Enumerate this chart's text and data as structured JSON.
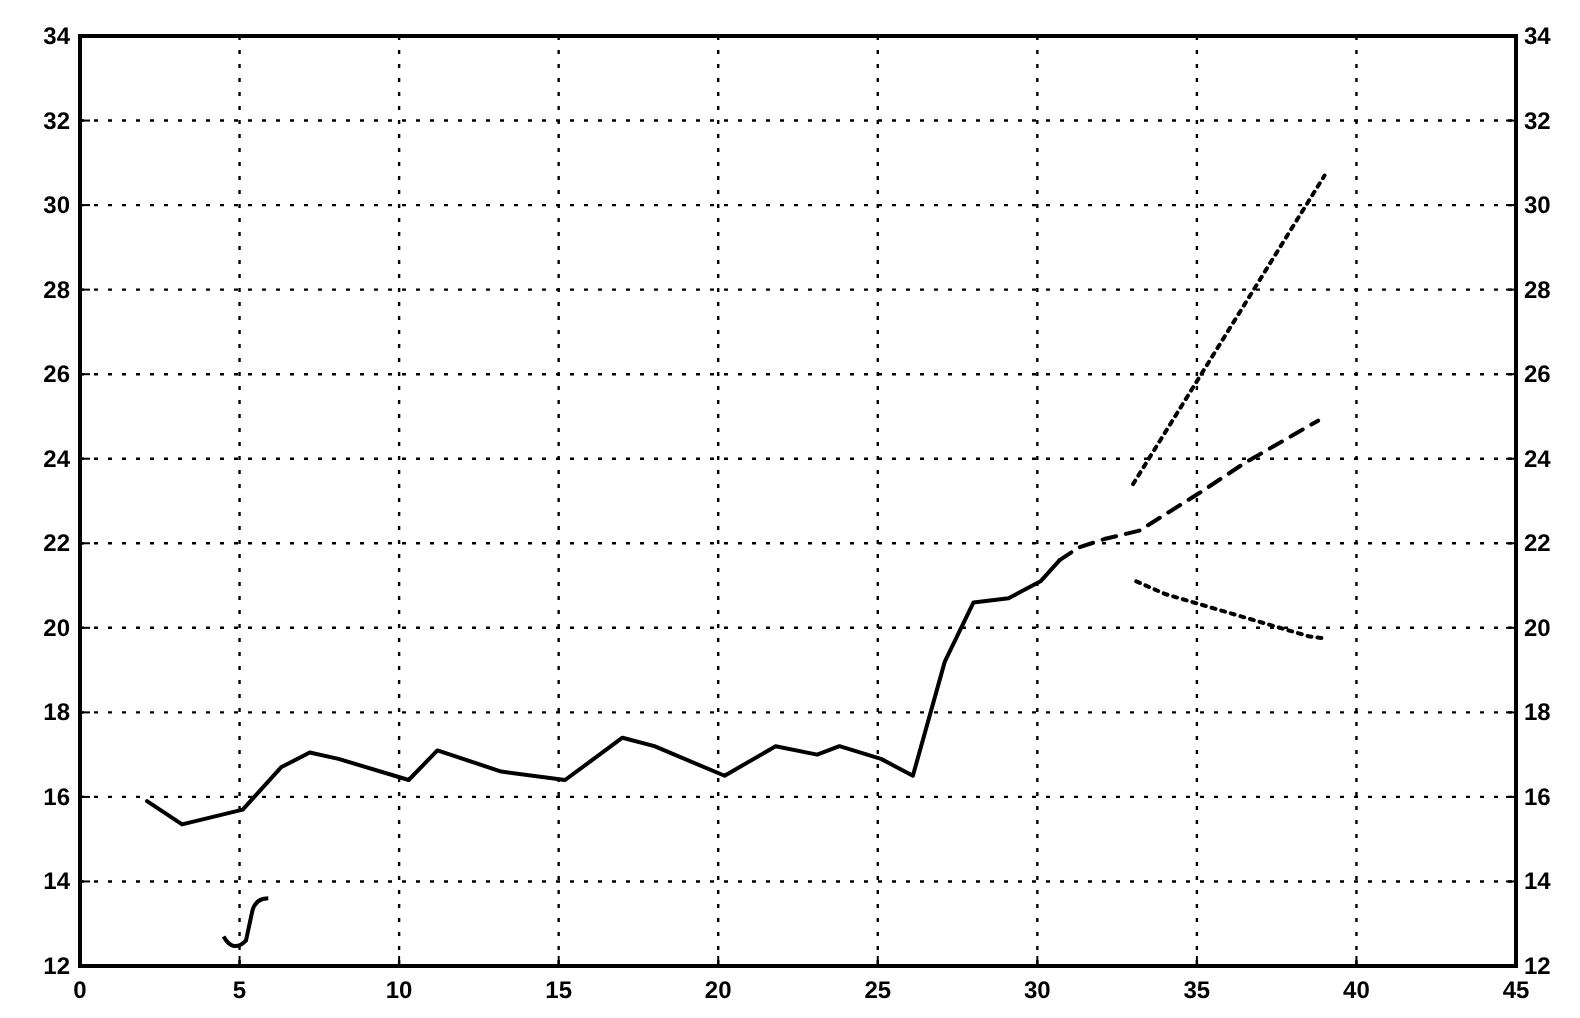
{
  "chart_data": {
    "type": "line",
    "xlim": [
      0,
      45
    ],
    "xticks": [
      0,
      5,
      10,
      15,
      20,
      25,
      30,
      35,
      40,
      45
    ],
    "ylim": [
      12,
      34
    ],
    "yticks": [
      12,
      14,
      16,
      18,
      20,
      22,
      24,
      26,
      28,
      30,
      32,
      34
    ],
    "y2lim": [
      12,
      34
    ],
    "y2ticks": [
      12,
      14,
      16,
      18,
      20,
      22,
      24,
      26,
      28,
      30,
      32,
      34
    ],
    "grid": true,
    "marker": "none",
    "series": [
      {
        "color": "#000000",
        "line_style": "solid",
        "x": [
          2.1,
          3.2,
          5.1,
          6.3,
          7.2,
          8.1,
          10.3,
          11.2,
          13.2,
          15.2,
          17.0,
          18.0,
          20.2,
          21.8,
          23.1,
          23.8,
          25.1,
          26.1,
          27.1,
          28.0,
          29.1,
          30.1,
          30.7
        ],
        "values": [
          15.9,
          15.35,
          15.7,
          16.7,
          17.05,
          16.9,
          16.4,
          17.1,
          16.6,
          16.4,
          17.4,
          17.2,
          16.5,
          17.2,
          17.0,
          17.2,
          16.9,
          16.5,
          19.2,
          20.6,
          20.7,
          21.1,
          21.6
        ]
      },
      {
        "color": "#000000",
        "line_style": "dashed",
        "x": [
          30.7,
          31.3,
          32.1,
          33.2,
          35.1,
          36.5,
          38.8
        ],
        "values": [
          21.6,
          21.9,
          22.1,
          22.3,
          23.2,
          23.9,
          24.9
        ]
      },
      {
        "color": "#000000",
        "line_style": "dotted",
        "x": [
          33.0,
          39.0
        ],
        "values": [
          23.4,
          30.7
        ]
      },
      {
        "color": "#000000",
        "line_style": "dotted",
        "x": [
          33.1,
          34.0,
          38.5,
          39.0
        ],
        "values": [
          21.1,
          20.8,
          19.8,
          19.75
        ]
      }
    ]
  }
}
